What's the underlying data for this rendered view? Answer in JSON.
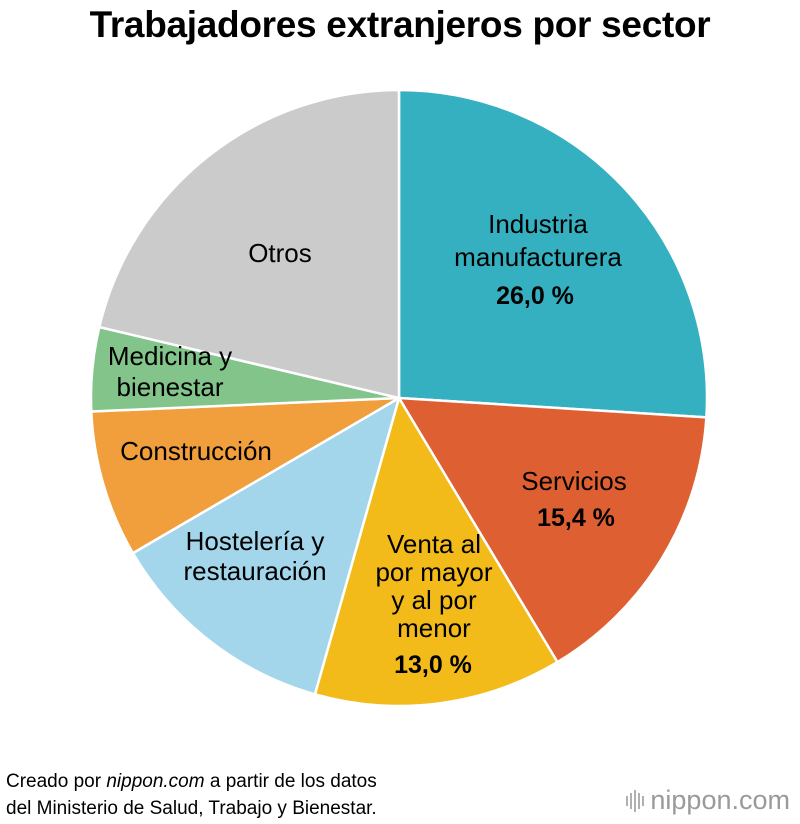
{
  "colors": {
    "Industria manufacturera": "#34b0c0",
    "Servicios": "#de5f32",
    "Venta al por mayor y al por menor": "#f2bb1a",
    "Hostelería y restauración": "#a3d6ea",
    "Construcción": "#f19e3d",
    "Medicina y bienestar": "#82c48a",
    "Otros": "#cbcbcb"
  },
  "chart_data": {
    "type": "pie",
    "title": "Trabajadores extranjeros por sector",
    "start_angle_deg": 0,
    "direction": "clockwise",
    "slices": [
      {
        "label": "Industria manufacturera",
        "label_lines": [
          "Industria",
          "manufacturera"
        ],
        "value": 26.0,
        "value_label": "26,0 %"
      },
      {
        "label": "Servicios",
        "label_lines": [
          "Servicios"
        ],
        "value": 15.4,
        "value_label": "15,4 %"
      },
      {
        "label": "Venta al por mayor y al por menor",
        "label_lines": [
          "Venta al",
          "por mayor",
          "y al por",
          "menor"
        ],
        "value": 13.0,
        "value_label": "13,0 %"
      },
      {
        "label": "Hostelería y restauración",
        "label_lines": [
          "Hostelería y",
          "restauración"
        ],
        "value": 12.2,
        "value_label": ""
      },
      {
        "label": "Construcción",
        "label_lines": [
          "Construcción"
        ],
        "value": 7.7,
        "value_label": ""
      },
      {
        "label": "Medicina y bienestar",
        "label_lines": [
          "Medicina y",
          "bienestar"
        ],
        "value": 4.4,
        "value_label": ""
      },
      {
        "label": "Otros",
        "label_lines": [
          "Otros"
        ],
        "value": 21.3,
        "value_label": ""
      }
    ]
  },
  "footer": {
    "line1_pre": "Creado por ",
    "line1_em": "nippon.com",
    "line1_post": " a partir de los datos",
    "line2": "del Ministerio de Salud, Trabajo y Bienestar."
  },
  "brand": {
    "name": "nippon",
    "suffix": ".com"
  }
}
